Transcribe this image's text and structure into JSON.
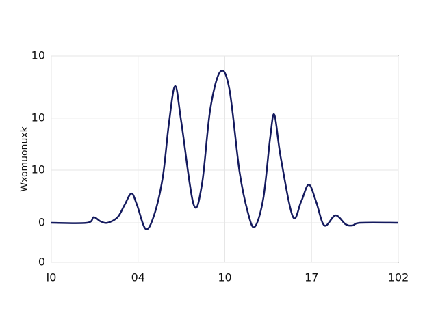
{
  "chart_data": {
    "type": "line",
    "y_label": "Wxomuonuxk",
    "x": [
      0,
      10.3,
      12.2,
      14.2,
      16.2,
      19.1,
      21.1,
      23.1,
      24.7,
      27.2,
      29.6,
      32.1,
      33.9,
      35.7,
      37.5,
      41.0,
      43.4,
      45.8,
      48.7,
      51.3,
      54.2,
      56.6,
      58.6,
      61.1,
      63.1,
      64.3,
      66.1,
      69.6,
      72.0,
      74.2,
      76.3,
      78.7,
      81.9,
      84.8,
      86.8,
      89.2,
      100
    ],
    "series": [
      {
        "color": "#141a5e",
        "values": [
          19.2,
          19.2,
          21.9,
          19.9,
          19.2,
          21.9,
          27.8,
          33.4,
          27.8,
          16.2,
          22.8,
          41.1,
          67.5,
          85.4,
          67.5,
          28.1,
          37.7,
          74.2,
          92.4,
          84.1,
          44.4,
          24.5,
          17.2,
          31.1,
          60.9,
          71.5,
          51.0,
          22.2,
          29.5,
          37.7,
          29.5,
          17.9,
          22.8,
          18.5,
          17.9,
          19.2,
          19.2
        ]
      }
    ],
    "xlim": [
      0,
      100
    ],
    "xticks": [
      {
        "value": 0,
        "label": "I0"
      },
      {
        "value": 25,
        "label": "04"
      },
      {
        "value": 50,
        "label": "10"
      },
      {
        "value": 75,
        "label": "17"
      },
      {
        "value": 100,
        "label": "102"
      }
    ],
    "ylim": [
      0,
      100
    ],
    "yticks": [
      0,
      {
        "value": 19.2,
        "label": "0"
      },
      {
        "value": 44.7,
        "label": "10"
      },
      {
        "value": 69.9,
        "label": "10"
      },
      {
        "value": 100,
        "label": "10"
      }
    ],
    "grid": true
  }
}
